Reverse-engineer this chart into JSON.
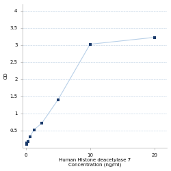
{
  "x": [
    0.078,
    0.156,
    0.313,
    0.625,
    1.25,
    2.5,
    5,
    10,
    20
  ],
  "y": [
    0.108,
    0.132,
    0.175,
    0.32,
    0.52,
    0.72,
    1.4,
    3.02,
    3.22
  ],
  "line_color": "#b8d0e8",
  "marker_color": "#1a3a6b",
  "marker_size": 3.5,
  "marker_style": "s",
  "xlabel_line1": "Human Histone deacetylase 7",
  "xlabel_line2": "Concentration (ng/ml)",
  "ylabel": "OD",
  "xlim": [
    -0.5,
    22
  ],
  "ylim": [
    0,
    4.2
  ],
  "yticks": [
    0.5,
    1.0,
    1.5,
    2.0,
    2.5,
    3.0,
    3.5,
    4.0
  ],
  "ytick_labels": [
    "0.5",
    "1",
    "1.5",
    "2",
    "2.5",
    "3",
    "3.5",
    "4"
  ],
  "xticks": [
    0,
    10,
    20
  ],
  "xtick_labels": [
    "0",
    "10",
    "20"
  ],
  "grid_color": "#c8d8e8",
  "background_color": "#ffffff",
  "xlabel_fontsize": 5,
  "ylabel_fontsize": 5,
  "tick_fontsize": 5
}
